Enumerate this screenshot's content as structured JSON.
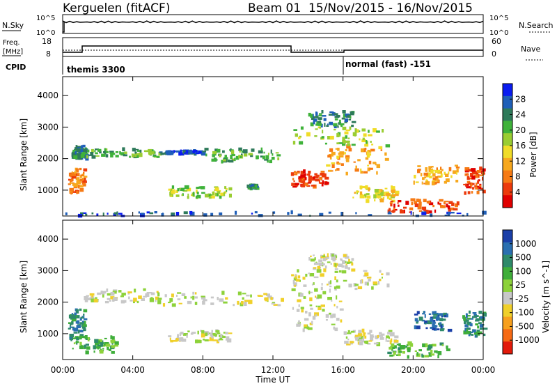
{
  "header": {
    "station": "Kerguelen (fitACF)",
    "beam": "Beam 01",
    "date_range": "15/Nov/2015 - 16/Nov/2015"
  },
  "panels": {
    "nsky": {
      "label": "N.Sky",
      "ticks": [
        "10^5",
        "10^0"
      ],
      "right_ticks": [
        "10^5",
        "10^0"
      ],
      "right_label": "N.Search"
    },
    "freq": {
      "label_line1": "Freq.",
      "label_line2": "[MHz]",
      "ticks": [
        "18",
        "8"
      ],
      "right_ticks": [
        "60",
        "0"
      ],
      "right_label": "Nave"
    },
    "cpid": {
      "label": "CPID",
      "segments": [
        {
          "start_hour": 0.0,
          "name": "themis 3300"
        },
        {
          "start_hour": 16.0,
          "name": "normal (fast) -151"
        }
      ]
    }
  },
  "x_axis": {
    "title": "Time UT",
    "tick_hours": [
      0,
      4,
      8,
      12,
      16,
      20,
      24
    ],
    "tick_labels": [
      "00:00",
      "04:00",
      "08:00",
      "12:00",
      "16:00",
      "20:00",
      "00:00"
    ]
  },
  "power_panel": {
    "ylabel": "Slant Range [km]",
    "yticks": [
      1000,
      2000,
      3000,
      4000
    ],
    "ylim": [
      180,
      4600
    ],
    "colorbar": {
      "label": "Power [dB]",
      "ticks": [
        "4",
        "8",
        "12",
        "16",
        "20",
        "24",
        "28"
      ],
      "colors": [
        "#0a1cf0",
        "#1f5fb8",
        "#2e7a5a",
        "#3fb23a",
        "#9acd32",
        "#f0dc28",
        "#f7a81e",
        "#f67a14",
        "#ec3a0c",
        "#e00000"
      ]
    }
  },
  "velocity_panel": {
    "ylabel": "Slant Range [km]",
    "yticks": [
      1000,
      2000,
      3000,
      4000
    ],
    "ylim": [
      180,
      4600
    ],
    "colorbar": {
      "label": "Velocity [m s^-1]",
      "ticks": [
        "1000",
        "500",
        "100",
        "25",
        "-25",
        "-100",
        "-500",
        "-1000"
      ],
      "colors": [
        "#1a3fa8",
        "#2a6fb0",
        "#2e8a6a",
        "#3fae3a",
        "#8dd23a",
        "#c8c8c8",
        "#f0d02a",
        "#f7a01e",
        "#f66a14",
        "#e21a0a"
      ]
    }
  },
  "chart_data": {
    "type": "heatmap",
    "x_unit": "hour UT",
    "y_unit": "km",
    "xlim": [
      0,
      24
    ],
    "power_bands": [
      {
        "x0": 0.3,
        "x1": 1.2,
        "y0": 900,
        "y1": 1700,
        "level": 7
      },
      {
        "x0": 0.5,
        "x1": 1.3,
        "y0": 2000,
        "y1": 2400,
        "level": 2
      },
      {
        "x0": 1.2,
        "x1": 5.5,
        "y0": 2050,
        "y1": 2300,
        "level": 3
      },
      {
        "x0": 5.5,
        "x1": 8.0,
        "y0": 2150,
        "y1": 2250,
        "level": 1
      },
      {
        "x0": 8.0,
        "x1": 12.5,
        "y0": 1900,
        "y1": 2300,
        "level": 3
      },
      {
        "x0": 6.0,
        "x1": 9.5,
        "y0": 750,
        "y1": 1100,
        "level": 4
      },
      {
        "x0": 10.5,
        "x1": 11.0,
        "y0": 1050,
        "y1": 1150,
        "level": 2
      },
      {
        "x0": 13.0,
        "x1": 15.0,
        "y0": 1100,
        "y1": 1600,
        "level": 8
      },
      {
        "x0": 15.0,
        "x1": 18.5,
        "y0": 1500,
        "y1": 2400,
        "level": 6
      },
      {
        "x0": 13.0,
        "x1": 18.5,
        "y0": 2400,
        "y1": 3000,
        "level": 4
      },
      {
        "x0": 14.0,
        "x1": 16.5,
        "y0": 3000,
        "y1": 3500,
        "level": 2
      },
      {
        "x0": 16.5,
        "x1": 19.0,
        "y0": 650,
        "y1": 1100,
        "level": 5
      },
      {
        "x0": 18.5,
        "x1": 22.5,
        "y0": 300,
        "y1": 700,
        "level": 8
      },
      {
        "x0": 20.0,
        "x1": 22.5,
        "y0": 1200,
        "y1": 1800,
        "level": 6
      },
      {
        "x0": 22.8,
        "x1": 24.0,
        "y0": 900,
        "y1": 1700,
        "level": 8
      },
      {
        "x0": 0.0,
        "x1": 24.0,
        "y0": 180,
        "y1": 300,
        "level": 1
      }
    ],
    "velocity_bands": [
      {
        "x0": 0.3,
        "x1": 1.2,
        "y0": 800,
        "y1": 1800,
        "level": 2
      },
      {
        "x0": 1.2,
        "x1": 5.5,
        "y0": 2000,
        "y1": 2400,
        "level": 5
      },
      {
        "x0": 5.5,
        "x1": 12.5,
        "y0": 1900,
        "y1": 2300,
        "level": 5
      },
      {
        "x0": 6.0,
        "x1": 9.5,
        "y0": 750,
        "y1": 1100,
        "level": 5
      },
      {
        "x0": 13.0,
        "x1": 16.0,
        "y0": 1100,
        "y1": 2400,
        "level": 5
      },
      {
        "x0": 13.0,
        "x1": 18.5,
        "y0": 2400,
        "y1": 3000,
        "level": 5
      },
      {
        "x0": 14.0,
        "x1": 16.5,
        "y0": 3000,
        "y1": 3500,
        "level": 5
      },
      {
        "x0": 16.0,
        "x1": 19.0,
        "y0": 650,
        "y1": 1100,
        "level": 5
      },
      {
        "x0": 18.5,
        "x1": 22.0,
        "y0": 250,
        "y1": 700,
        "level": 3
      },
      {
        "x0": 20.0,
        "x1": 22.0,
        "y0": 1100,
        "y1": 1700,
        "level": 1
      },
      {
        "x0": 22.8,
        "x1": 24.0,
        "y0": 900,
        "y1": 1700,
        "level": 2
      },
      {
        "x0": 0.5,
        "x1": 3.0,
        "y0": 400,
        "y1": 900,
        "level": 3
      }
    ]
  }
}
